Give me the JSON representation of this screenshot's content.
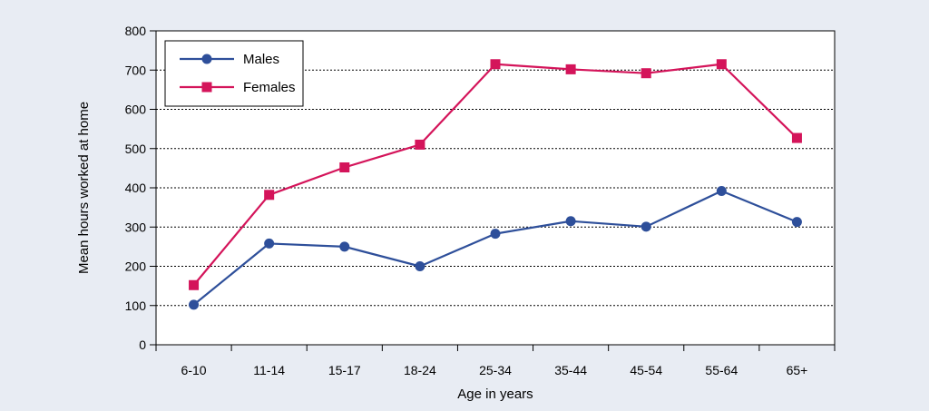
{
  "chart_data": {
    "type": "line",
    "title": "",
    "xlabel": "Age in years",
    "ylabel": "Mean hours worked at home",
    "categories": [
      "6-10",
      "11-14",
      "15-17",
      "18-24",
      "25-34",
      "35-44",
      "45-54",
      "55-64",
      "65+"
    ],
    "ylim": [
      0,
      800
    ],
    "yticks": [
      "0",
      "100",
      "200",
      "300",
      "400",
      "500",
      "600",
      "700",
      "800"
    ],
    "grid": "horizontal-dotted",
    "legend_position": "top-left",
    "series": [
      {
        "name": "Males",
        "marker": "circle",
        "color": "#2e4f9a",
        "values": [
          102,
          258,
          250,
          200,
          283,
          315,
          301,
          392,
          313
        ]
      },
      {
        "name": "Females",
        "marker": "square",
        "color": "#d4145a",
        "values": [
          152,
          382,
          452,
          510,
          715,
          702,
          692,
          715,
          527
        ]
      }
    ]
  }
}
